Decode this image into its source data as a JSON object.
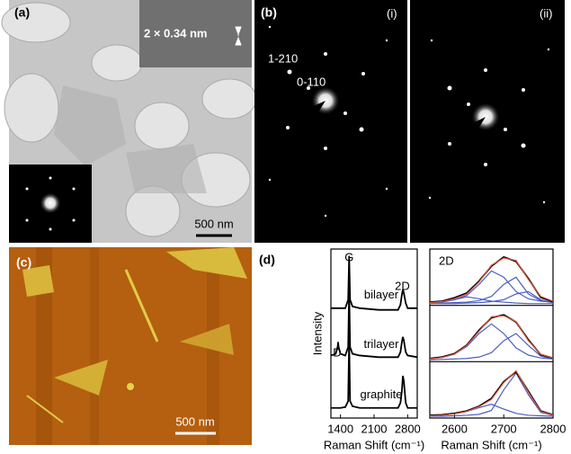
{
  "panels": {
    "a": {
      "label": "(a)",
      "inset_label": "2 × 0.34 nm",
      "scale_bar": "500 nm"
    },
    "b": {
      "label": "(b)",
      "sub_labels": [
        "(i)",
        "(ii)"
      ],
      "spot_labels": [
        "1-210",
        "0-110"
      ]
    },
    "c": {
      "label": "(c)",
      "scale_bar": "500 nm"
    },
    "d": {
      "label": "(d)"
    }
  },
  "chart_data": [
    {
      "type": "line",
      "ylabel": "Intensity",
      "xlabel": "Raman Shift (cm⁻¹)",
      "xlim": [
        1200,
        3000
      ],
      "xticks": [
        1400,
        2100,
        2800
      ],
      "ylim": [
        0,
        10
      ],
      "annotations": [
        "G",
        "D",
        "2D"
      ],
      "x": [
        1200,
        1300,
        1340,
        1350,
        1360,
        1400,
        1500,
        1560,
        1580,
        1600,
        1650,
        1800,
        2200,
        2400,
        2600,
        2650,
        2680,
        2700,
        2720,
        2760,
        2800,
        3000
      ],
      "series": [
        {
          "name": "bilayer",
          "color": "#000000",
          "values": [
            6.5,
            6.5,
            6.5,
            6.5,
            6.5,
            6.5,
            6.5,
            7.0,
            9.6,
            7.0,
            6.6,
            6.5,
            6.4,
            6.4,
            6.4,
            6.7,
            7.3,
            7.6,
            7.4,
            6.8,
            6.5,
            6.5
          ]
        },
        {
          "name": "trilayer",
          "color": "#000000",
          "values": [
            3.7,
            3.8,
            4.2,
            4.5,
            4.2,
            3.8,
            3.7,
            4.2,
            7.6,
            4.2,
            3.8,
            3.7,
            3.6,
            3.6,
            3.6,
            3.9,
            4.5,
            4.8,
            4.6,
            3.9,
            3.7,
            3.6
          ]
        },
        {
          "name": "graphite",
          "color": "#000000",
          "values": [
            0.6,
            0.6,
            0.6,
            0.6,
            0.6,
            0.6,
            0.65,
            1.0,
            4.6,
            1.0,
            0.7,
            0.6,
            0.6,
            0.6,
            0.6,
            0.9,
            1.6,
            2.5,
            2.2,
            0.9,
            0.6,
            0.6
          ]
        }
      ]
    },
    {
      "type": "line",
      "title": "2D",
      "xlabel": "Raman Shift (cm⁻¹)",
      "xlim": [
        2550,
        2800
      ],
      "xticks": [
        2600,
        2700,
        2800
      ],
      "x": [
        2550,
        2575,
        2600,
        2625,
        2650,
        2675,
        2700,
        2725,
        2750,
        2775,
        2800
      ],
      "subplots": [
        {
          "ylim": [
            0,
            1.1
          ],
          "series": [
            {
              "color": "#4a5fc1",
              "values": [
                0.02,
                0.04,
                0.08,
                0.17,
                0.4,
                0.68,
                0.55,
                0.25,
                0.1,
                0.05,
                0.03
              ]
            },
            {
              "color": "#4a5fc1",
              "values": [
                0,
                0.01,
                0.02,
                0.03,
                0.06,
                0.15,
                0.4,
                0.55,
                0.2,
                0.06,
                0.02
              ]
            },
            {
              "color": "#4a5fc1",
              "values": [
                0.01,
                0.03,
                0.08,
                0.14,
                0.1,
                0.05,
                0.03,
                0.01,
                0,
                0,
                0
              ]
            },
            {
              "color": "#4a5fc1",
              "values": [
                0,
                0,
                0,
                0.01,
                0.02,
                0.04,
                0.08,
                0.2,
                0.25,
                0.08,
                0.02
              ]
            },
            {
              "color": "#000000",
              "values": [
                0.03,
                0.05,
                0.12,
                0.22,
                0.47,
                0.78,
                0.97,
                0.88,
                0.52,
                0.13,
                0.04
              ]
            },
            {
              "color": "#e0573a",
              "values": [
                0.02,
                0.04,
                0.1,
                0.2,
                0.45,
                0.8,
                0.95,
                0.9,
                0.5,
                0.15,
                0.05
              ]
            }
          ]
        },
        {
          "ylim": [
            0,
            1.1
          ],
          "series": [
            {
              "color": "#4a5fc1",
              "values": [
                0.02,
                0.05,
                0.12,
                0.28,
                0.55,
                0.75,
                0.55,
                0.25,
                0.1,
                0.04,
                0.02
              ]
            },
            {
              "color": "#4a5fc1",
              "values": [
                0,
                0.01,
                0.02,
                0.03,
                0.06,
                0.15,
                0.4,
                0.55,
                0.3,
                0.08,
                0.02
              ]
            },
            {
              "color": "#000000",
              "values": [
                0.03,
                0.06,
                0.13,
                0.31,
                0.62,
                0.88,
                0.94,
                0.79,
                0.42,
                0.11,
                0.04
              ]
            },
            {
              "color": "#e0573a",
              "values": [
                0.02,
                0.05,
                0.12,
                0.3,
                0.6,
                0.9,
                0.92,
                0.8,
                0.4,
                0.12,
                0.04
              ]
            }
          ]
        },
        {
          "ylim": [
            0,
            1.1
          ],
          "series": [
            {
              "color": "#4a5fc1",
              "values": [
                0.01,
                0.02,
                0.05,
                0.1,
                0.18,
                0.25,
                0.15,
                0.06,
                0.02,
                0.01,
                0
              ]
            },
            {
              "color": "#4a5fc1",
              "values": [
                0,
                0,
                0.01,
                0.02,
                0.04,
                0.12,
                0.55,
                0.9,
                0.45,
                0.08,
                0.02
              ]
            },
            {
              "color": "#000000",
              "values": [
                0.02,
                0.03,
                0.06,
                0.11,
                0.21,
                0.37,
                0.72,
                0.93,
                0.52,
                0.11,
                0.03
              ]
            },
            {
              "color": "#e0573a",
              "values": [
                0.01,
                0.02,
                0.05,
                0.1,
                0.2,
                0.35,
                0.7,
                0.95,
                0.5,
                0.1,
                0.03
              ]
            }
          ]
        }
      ]
    }
  ]
}
